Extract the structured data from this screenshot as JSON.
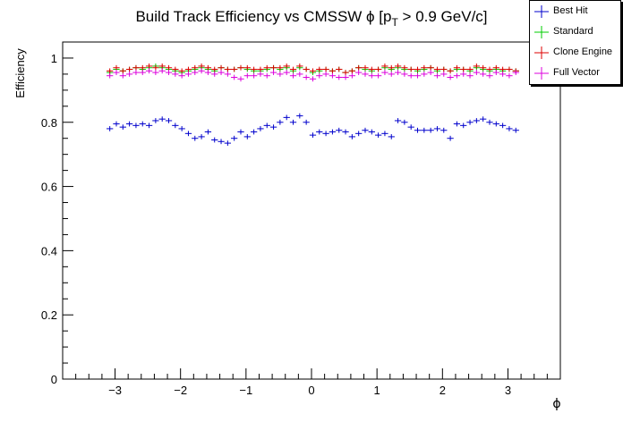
{
  "chart_data": {
    "type": "scatter",
    "title": "Build Track Efficiency vs CMSSW ϕ [p_T > 0.9 GeV/c]",
    "title_parts": {
      "pre": "Build Track Efficiency vs CMSSW ϕ [p",
      "sub": "T",
      "post": " > 0.9 GeV/c]"
    },
    "xlabel": "ϕ",
    "ylabel": "Efficiency",
    "xlim": [
      -3.8,
      3.8
    ],
    "ylim": [
      0,
      1.05
    ],
    "xticks": [
      -3,
      -2,
      -1,
      0,
      1,
      2,
      3
    ],
    "xtick_labels": [
      "−3",
      "−2",
      "−1",
      "0",
      "1",
      "2",
      "3"
    ],
    "yticks": [
      0,
      0.2,
      0.4,
      0.6,
      0.8,
      1
    ],
    "ytick_labels": [
      "0",
      "0.2",
      "0.4",
      "0.6",
      "0.8",
      "1"
    ],
    "grid": false,
    "legend_position": "top-right",
    "x": [
      -3.08,
      -2.98,
      -2.88,
      -2.78,
      -2.68,
      -2.58,
      -2.48,
      -2.38,
      -2.28,
      -2.18,
      -2.08,
      -1.98,
      -1.88,
      -1.78,
      -1.68,
      -1.58,
      -1.48,
      -1.38,
      -1.28,
      -1.18,
      -1.08,
      -0.98,
      -0.88,
      -0.78,
      -0.68,
      -0.58,
      -0.48,
      -0.38,
      -0.28,
      -0.18,
      -0.08,
      0.02,
      0.12,
      0.22,
      0.32,
      0.42,
      0.52,
      0.62,
      0.72,
      0.82,
      0.92,
      1.02,
      1.12,
      1.22,
      1.32,
      1.42,
      1.52,
      1.62,
      1.72,
      1.82,
      1.92,
      2.02,
      2.12,
      2.22,
      2.32,
      2.42,
      2.52,
      2.62,
      2.72,
      2.82,
      2.92,
      3.02,
      3.12
    ],
    "series": [
      {
        "name": "Best Hit",
        "color": "#0000cc",
        "values": [
          0.78,
          0.795,
          0.785,
          0.795,
          0.79,
          0.795,
          0.79,
          0.805,
          0.81,
          0.805,
          0.79,
          0.78,
          0.765,
          0.75,
          0.755,
          0.77,
          0.745,
          0.74,
          0.735,
          0.75,
          0.77,
          0.755,
          0.77,
          0.78,
          0.79,
          0.785,
          0.8,
          0.815,
          0.8,
          0.82,
          0.8,
          0.76,
          0.77,
          0.765,
          0.77,
          0.775,
          0.77,
          0.755,
          0.765,
          0.775,
          0.77,
          0.76,
          0.765,
          0.755,
          0.805,
          0.8,
          0.785,
          0.775,
          0.775,
          0.775,
          0.78,
          0.775,
          0.75,
          0.795,
          0.79,
          0.8,
          0.805,
          0.81,
          0.8,
          0.795,
          0.79,
          0.78,
          0.775
        ]
      },
      {
        "name": "Standard",
        "color": "#00cc00",
        "values": [
          0.955,
          0.965,
          0.96,
          0.965,
          0.97,
          0.965,
          0.97,
          0.975,
          0.97,
          0.965,
          0.96,
          0.955,
          0.96,
          0.965,
          0.97,
          0.965,
          0.96,
          0.97,
          0.965,
          0.965,
          0.97,
          0.965,
          0.96,
          0.96,
          0.965,
          0.97,
          0.965,
          0.97,
          0.96,
          0.97,
          0.965,
          0.955,
          0.96,
          0.965,
          0.96,
          0.965,
          0.955,
          0.96,
          0.97,
          0.965,
          0.96,
          0.965,
          0.97,
          0.965,
          0.97,
          0.965,
          0.965,
          0.96,
          0.965,
          0.97,
          0.96,
          0.965,
          0.96,
          0.965,
          0.965,
          0.96,
          0.97,
          0.965,
          0.96,
          0.965,
          0.96,
          0.965,
          0.96
        ]
      },
      {
        "name": "Clone Engine",
        "color": "#dd0000",
        "values": [
          0.96,
          0.97,
          0.96,
          0.965,
          0.97,
          0.97,
          0.975,
          0.97,
          0.975,
          0.97,
          0.965,
          0.96,
          0.965,
          0.97,
          0.975,
          0.97,
          0.965,
          0.97,
          0.965,
          0.965,
          0.97,
          0.97,
          0.965,
          0.965,
          0.97,
          0.97,
          0.97,
          0.975,
          0.965,
          0.975,
          0.965,
          0.96,
          0.965,
          0.965,
          0.96,
          0.965,
          0.955,
          0.96,
          0.97,
          0.97,
          0.965,
          0.965,
          0.975,
          0.97,
          0.975,
          0.97,
          0.965,
          0.965,
          0.97,
          0.97,
          0.965,
          0.965,
          0.96,
          0.97,
          0.965,
          0.965,
          0.975,
          0.97,
          0.965,
          0.97,
          0.965,
          0.965,
          0.96
        ]
      },
      {
        "name": "Full Vector",
        "color": "#dd00dd",
        "values": [
          0.945,
          0.955,
          0.945,
          0.95,
          0.955,
          0.955,
          0.96,
          0.955,
          0.96,
          0.955,
          0.95,
          0.945,
          0.95,
          0.955,
          0.96,
          0.955,
          0.95,
          0.955,
          0.95,
          0.94,
          0.935,
          0.945,
          0.945,
          0.95,
          0.945,
          0.955,
          0.95,
          0.955,
          0.945,
          0.95,
          0.94,
          0.935,
          0.945,
          0.95,
          0.945,
          0.94,
          0.94,
          0.945,
          0.955,
          0.95,
          0.945,
          0.945,
          0.955,
          0.95,
          0.955,
          0.95,
          0.945,
          0.945,
          0.95,
          0.955,
          0.945,
          0.95,
          0.94,
          0.945,
          0.95,
          0.945,
          0.955,
          0.95,
          0.945,
          0.955,
          0.95,
          0.945,
          0.955
        ]
      }
    ]
  },
  "legend": {
    "entries": [
      {
        "label": "Best Hit",
        "color": "#0000cc"
      },
      {
        "label": "Standard",
        "color": "#00cc00"
      },
      {
        "label": "Clone Engine",
        "color": "#dd0000"
      },
      {
        "label": "Full Vector",
        "color": "#dd00dd"
      }
    ]
  }
}
